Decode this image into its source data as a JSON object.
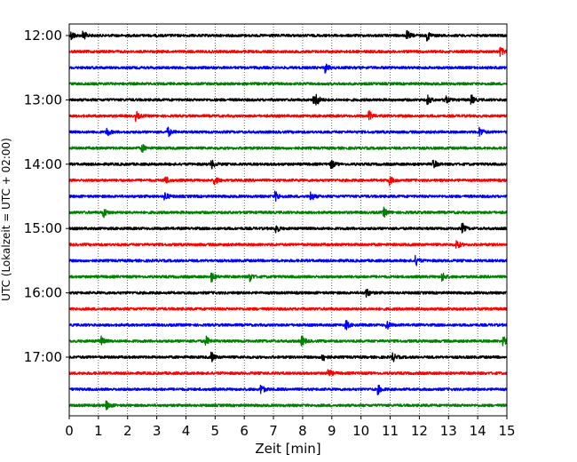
{
  "chart_data": {
    "type": "line",
    "title": "",
    "xlabel": "Zeit  [min]",
    "ylabel": "UTC (Lokalzeit = UTC + 02:00)",
    "xlim": [
      0,
      15
    ],
    "x_ticks": [
      0,
      1,
      2,
      3,
      4,
      5,
      6,
      7,
      8,
      9,
      10,
      11,
      12,
      13,
      14,
      15
    ],
    "x_gridlines": "dotted vertical lines at each minute",
    "y_tick_labels": [
      "12:00",
      "13:00",
      "14:00",
      "15:00",
      "16:00",
      "17:00"
    ],
    "rows_per_hour": 4,
    "minutes_per_row": 15,
    "color_cycle": [
      "#000000",
      "#ff0000",
      "#0000ff",
      "#008000"
    ],
    "series": [
      {
        "start": "12:00",
        "color": "#000000",
        "events_min": [
          0.1,
          0.5,
          11.6,
          12.3
        ]
      },
      {
        "start": "12:15",
        "color": "#ff0000",
        "events_min": [
          14.8
        ]
      },
      {
        "start": "12:30",
        "color": "#0000ff",
        "events_min": [
          8.8
        ]
      },
      {
        "start": "12:45",
        "color": "#008000",
        "events_min": []
      },
      {
        "start": "13:00",
        "color": "#000000",
        "events_min": [
          8.4,
          8.5,
          12.3,
          12.9,
          13.8
        ]
      },
      {
        "start": "13:15",
        "color": "#ff0000",
        "events_min": [
          2.3,
          10.3
        ]
      },
      {
        "start": "13:30",
        "color": "#0000ff",
        "events_min": [
          1.3,
          3.4,
          14.1
        ]
      },
      {
        "start": "13:45",
        "color": "#008000",
        "events_min": [
          2.5
        ]
      },
      {
        "start": "14:00",
        "color": "#000000",
        "events_min": [
          4.9,
          9.0,
          12.5
        ]
      },
      {
        "start": "14:15",
        "color": "#ff0000",
        "events_min": [
          3.3,
          5.0,
          11.0
        ]
      },
      {
        "start": "14:30",
        "color": "#0000ff",
        "events_min": [
          3.3,
          7.1,
          8.3
        ]
      },
      {
        "start": "14:45",
        "color": "#008000",
        "events_min": [
          1.2,
          10.8
        ]
      },
      {
        "start": "15:00",
        "color": "#000000",
        "events_min": [
          7.1,
          13.5
        ]
      },
      {
        "start": "15:15",
        "color": "#ff0000",
        "events_min": [
          13.3
        ]
      },
      {
        "start": "15:30",
        "color": "#0000ff",
        "events_min": [
          11.9
        ]
      },
      {
        "start": "15:45",
        "color": "#008000",
        "events_min": [
          4.9,
          6.2,
          12.8
        ]
      },
      {
        "start": "16:00",
        "color": "#000000",
        "events_min": [
          10.2
        ]
      },
      {
        "start": "16:15",
        "color": "#ff0000",
        "events_min": []
      },
      {
        "start": "16:30",
        "color": "#0000ff",
        "events_min": [
          9.5,
          10.9
        ]
      },
      {
        "start": "16:45",
        "color": "#008000",
        "events_min": [
          1.1,
          4.7,
          8.0,
          14.9
        ]
      },
      {
        "start": "17:00",
        "color": "#000000",
        "events_min": [
          4.9,
          8.7,
          11.1
        ]
      },
      {
        "start": "17:15",
        "color": "#ff0000",
        "events_min": [
          8.9
        ]
      },
      {
        "start": "17:30",
        "color": "#0000ff",
        "events_min": [
          6.6,
          10.6
        ]
      },
      {
        "start": "17:45",
        "color": "#008000",
        "events_min": [
          1.3
        ]
      }
    ]
  }
}
